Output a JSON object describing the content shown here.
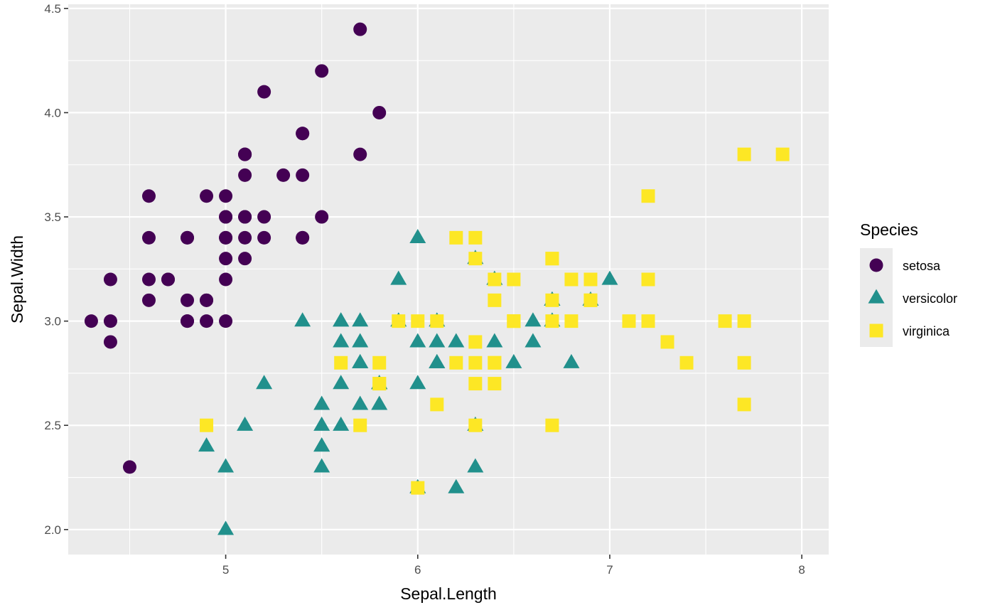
{
  "chart_data": {
    "type": "scatter",
    "xlabel": "Sepal.Length",
    "ylabel": "Sepal.Width",
    "xlim": [
      4.18,
      8.14
    ],
    "ylim": [
      1.88,
      4.52
    ],
    "x_ticks": [
      5,
      6,
      7,
      8
    ],
    "x_tick_labels": [
      "5",
      "6",
      "7",
      "8"
    ],
    "y_ticks": [
      2.0,
      2.5,
      3.0,
      3.5,
      4.0,
      4.5
    ],
    "y_tick_labels": [
      "2.0",
      "2.5",
      "3.0",
      "3.5",
      "4.0",
      "4.5"
    ],
    "grid": true,
    "legend": {
      "title": "Species",
      "position": "right"
    },
    "series": [
      {
        "name": "setosa",
        "shape": "circle",
        "color": "#440154",
        "x": [
          5.1,
          4.9,
          4.7,
          4.6,
          5.0,
          5.4,
          4.6,
          5.0,
          4.4,
          4.9,
          5.4,
          4.8,
          4.8,
          4.3,
          5.8,
          5.7,
          5.4,
          5.1,
          5.7,
          5.1,
          5.4,
          5.1,
          4.6,
          5.1,
          4.8,
          5.0,
          5.0,
          5.2,
          5.2,
          4.7,
          4.8,
          5.4,
          5.2,
          5.5,
          4.9,
          5.0,
          5.5,
          4.9,
          4.4,
          5.1,
          5.0,
          4.5,
          4.4,
          5.0,
          5.1,
          4.8,
          5.1,
          4.6,
          5.3,
          5.0
        ],
        "y": [
          3.5,
          3.0,
          3.2,
          3.1,
          3.6,
          3.9,
          3.4,
          3.4,
          2.9,
          3.1,
          3.7,
          3.4,
          3.0,
          3.0,
          4.0,
          4.4,
          3.9,
          3.5,
          3.8,
          3.8,
          3.4,
          3.7,
          3.6,
          3.3,
          3.4,
          3.0,
          3.4,
          3.5,
          3.4,
          3.2,
          3.1,
          3.4,
          4.1,
          4.2,
          3.1,
          3.2,
          3.5,
          3.6,
          3.0,
          3.4,
          3.5,
          2.3,
          3.2,
          3.5,
          3.8,
          3.0,
          3.8,
          3.2,
          3.7,
          3.3
        ]
      },
      {
        "name": "versicolor",
        "shape": "triangle",
        "color": "#21908C",
        "x": [
          7.0,
          6.4,
          6.9,
          5.5,
          6.5,
          5.7,
          6.3,
          4.9,
          6.6,
          5.2,
          5.0,
          5.9,
          6.0,
          6.1,
          5.6,
          6.7,
          5.6,
          5.8,
          6.2,
          5.6,
          5.9,
          6.1,
          6.3,
          6.1,
          6.4,
          6.6,
          6.8,
          6.7,
          6.0,
          5.7,
          5.5,
          5.5,
          5.8,
          6.0,
          5.4,
          6.0,
          6.7,
          6.3,
          5.6,
          5.5,
          5.5,
          6.1,
          5.8,
          5.0,
          5.6,
          5.7,
          5.7,
          6.2,
          5.1,
          5.7
        ],
        "y": [
          3.2,
          3.2,
          3.1,
          2.3,
          2.8,
          2.8,
          3.3,
          2.4,
          2.9,
          2.7,
          2.0,
          3.0,
          2.2,
          2.9,
          2.9,
          3.1,
          3.0,
          2.7,
          2.2,
          2.5,
          3.2,
          2.8,
          2.5,
          2.8,
          2.9,
          3.0,
          2.8,
          3.0,
          2.9,
          2.6,
          2.4,
          2.4,
          2.7,
          2.7,
          3.0,
          3.4,
          3.1,
          2.3,
          3.0,
          2.5,
          2.6,
          3.0,
          2.6,
          2.3,
          2.7,
          3.0,
          2.9,
          2.9,
          2.5,
          2.8
        ]
      },
      {
        "name": "virginica",
        "shape": "square",
        "color": "#FDE725",
        "x": [
          6.3,
          5.8,
          7.1,
          6.3,
          6.5,
          7.6,
          4.9,
          7.3,
          6.7,
          7.2,
          6.5,
          6.4,
          6.8,
          5.7,
          5.8,
          6.4,
          6.5,
          7.7,
          7.7,
          6.0,
          6.9,
          5.6,
          7.7,
          6.3,
          6.7,
          7.2,
          6.2,
          6.1,
          6.4,
          7.2,
          7.4,
          7.9,
          6.4,
          6.3,
          6.1,
          7.7,
          6.3,
          6.4,
          6.0,
          6.9,
          6.7,
          6.9,
          5.8,
          6.8,
          6.7,
          6.7,
          6.3,
          6.5,
          6.2,
          5.9
        ],
        "y": [
          3.3,
          2.7,
          3.0,
          2.9,
          3.0,
          3.0,
          2.5,
          2.9,
          2.5,
          3.6,
          3.2,
          2.7,
          3.0,
          2.5,
          2.8,
          3.2,
          3.0,
          3.8,
          2.6,
          2.2,
          3.2,
          2.8,
          2.8,
          2.7,
          3.3,
          3.2,
          2.8,
          3.0,
          2.8,
          3.0,
          2.8,
          3.8,
          2.8,
          2.8,
          2.6,
          3.0,
          3.4,
          3.1,
          3.0,
          3.1,
          3.1,
          3.1,
          2.7,
          3.2,
          3.3,
          3.0,
          2.5,
          3.0,
          3.4,
          3.0
        ]
      }
    ]
  }
}
